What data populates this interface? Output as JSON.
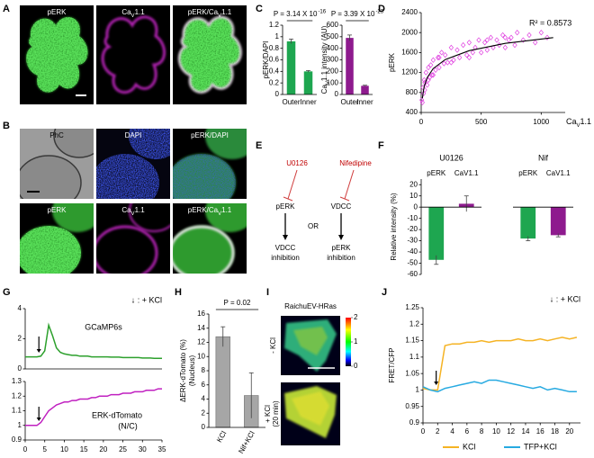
{
  "panel_labels": [
    "A",
    "B",
    "C",
    "D",
    "E",
    "F",
    "G",
    "H",
    "I",
    "J"
  ],
  "images": {
    "A": [
      "pERK",
      "CaV1.1",
      "pERK/CaV1.1"
    ],
    "B": [
      "PhC",
      "DAPI",
      "pERK/DAPI",
      "pERK",
      "CaV1.1",
      "pERK/CaV1.1"
    ],
    "I": {
      "title": "RaichuEV-HRas",
      "rows": [
        "- KCl",
        "+ KCl"
      ],
      "row_note": "(20 min)",
      "colorbar_lim": [
        0,
        2
      ],
      "colorbar_ticks": [
        0,
        1,
        2
      ]
    }
  },
  "diagram": {
    "inhibitors": [
      "U0126",
      "Nifedipine"
    ],
    "nodes": [
      "pERK",
      "VDCC"
    ],
    "separator": "OR",
    "outcomes": [
      [
        "VDCC",
        "inhibition"
      ],
      [
        "pERK",
        "inhibition"
      ]
    ]
  },
  "chart_data": [
    {
      "type": "bar",
      "ylabel": "pERK/DAPI",
      "categories": [
        "Outer",
        "Inner"
      ],
      "values": [
        0.92,
        0.4
      ],
      "errors": [
        0.04,
        0.015
      ],
      "color": "#1ea650",
      "ylim": [
        0,
        1.2
      ],
      "yticks": [
        0,
        0.2,
        0.4,
        0.6,
        0.8,
        1,
        1.2
      ],
      "annotation": {
        "text": "P = 3.14 X 10",
        "exponent": "-16"
      }
    },
    {
      "type": "bar",
      "ylabel": "CaV1.1 intensity (AU)",
      "categories": [
        "Outer",
        "Inner"
      ],
      "values": [
        490,
        75
      ],
      "errors": [
        25,
        5
      ],
      "color": "#8e1a8e",
      "ylim": [
        0,
        600
      ],
      "yticks": [
        0,
        100,
        200,
        300,
        400,
        500,
        600
      ],
      "annotation": {
        "text": "P = 3.39 X 10",
        "exponent": "-23"
      }
    },
    {
      "type": "scatter",
      "ylabel": "pERK",
      "xlabel": "CaV1.1",
      "annotation": "R² = 0.8573",
      "color": "#e040e0",
      "x": [
        5,
        10,
        15,
        20,
        25,
        30,
        40,
        50,
        60,
        70,
        80,
        90,
        100,
        120,
        140,
        150,
        170,
        190,
        200,
        220,
        250,
        270,
        300,
        320,
        350,
        380,
        400,
        430,
        450,
        480,
        500,
        530,
        550,
        580,
        600,
        630,
        650,
        680,
        700,
        730,
        750,
        780,
        800,
        850,
        900,
        950,
        1000,
        1050,
        30,
        60,
        100,
        150,
        250,
        400,
        550,
        700
      ],
      "y": [
        650,
        600,
        900,
        780,
        1050,
        850,
        1200,
        950,
        1300,
        1100,
        1350,
        1150,
        1450,
        1250,
        1500,
        1300,
        1600,
        1380,
        1550,
        1400,
        1700,
        1450,
        1650,
        1500,
        1750,
        1550,
        1800,
        1600,
        1700,
        1850,
        1600,
        1800,
        1650,
        1900,
        1700,
        1850,
        1750,
        1950,
        1700,
        1850,
        1900,
        1750,
        2000,
        1850,
        1950,
        1800,
        2000,
        1900,
        1000,
        1050,
        1150,
        1500,
        1400,
        1500,
        1850,
        1900
      ],
      "trendline": {
        "x": [
          10,
          25,
          50,
          100,
          200,
          400,
          700,
          1100
        ],
        "y": [
          684,
          921,
          1100,
          1279,
          1459,
          1638,
          1783,
          1900
        ]
      },
      "xlim": [
        0,
        1200
      ],
      "xticks": [
        0,
        500,
        1000
      ],
      "ylim": [
        400,
        2400
      ],
      "yticks": [
        400,
        800,
        1200,
        1600,
        2000,
        2400
      ]
    },
    {
      "type": "bar",
      "title": "U0126",
      "ylabel": "Relative intensity (%)",
      "categories": [
        "pERK",
        "CaV1.1"
      ],
      "values": [
        -47,
        3
      ],
      "errors": [
        4,
        7
      ],
      "colors": [
        "#1ea650",
        "#8e1a8e"
      ],
      "ylim": [
        -60,
        25
      ],
      "yticks": [
        -60,
        -50,
        -40,
        -30,
        -20,
        -10,
        0,
        10,
        20
      ]
    },
    {
      "type": "bar",
      "title": "Nif",
      "categories": [
        "pERK",
        "CaV1.1"
      ],
      "values": [
        -28,
        -25
      ],
      "errors": [
        2,
        1.5
      ],
      "colors": [
        "#1ea650",
        "#8e1a8e"
      ],
      "ylim": [
        -60,
        25
      ]
    },
    {
      "type": "line",
      "annotation": "↓ : + KCl",
      "stimulus_x": 3.5,
      "x": [
        0,
        1,
        2,
        3,
        4,
        5,
        6,
        7,
        8,
        9,
        10,
        11,
        12,
        13,
        14,
        15,
        16,
        17,
        18,
        19,
        20,
        21,
        22,
        23,
        24,
        25,
        26,
        27,
        28,
        29,
        30,
        31,
        32,
        33,
        34,
        35
      ],
      "series": [
        {
          "name": "GCaMP6s",
          "color": "#2ca02c",
          "values": [
            0.8,
            0.8,
            0.8,
            0.8,
            0.85,
            1.2,
            2.9,
            2.2,
            1.4,
            1.1,
            1.0,
            0.95,
            0.9,
            0.9,
            0.85,
            0.85,
            0.85,
            0.8,
            0.8,
            0.8,
            0.8,
            0.8,
            0.78,
            0.78,
            0.78,
            0.75,
            0.75,
            0.75,
            0.75,
            0.75,
            0.72,
            0.72,
            0.72,
            0.7,
            0.7,
            0.7
          ]
        }
      ],
      "xlim": [
        0,
        35
      ],
      "ylim": [
        0,
        4
      ],
      "yticks": [
        0,
        2,
        4
      ]
    },
    {
      "type": "line",
      "stimulus_x": 3.5,
      "series_note": "(N/C)",
      "x": [
        0,
        1,
        2,
        3,
        4,
        5,
        6,
        7,
        8,
        9,
        10,
        11,
        12,
        13,
        14,
        15,
        16,
        17,
        18,
        19,
        20,
        21,
        22,
        23,
        24,
        25,
        26,
        27,
        28,
        29,
        30,
        31,
        32,
        33,
        34,
        35
      ],
      "series": [
        {
          "name": "ERK-dTomato",
          "color": "#c020c0",
          "values": [
            1.0,
            1.0,
            1.0,
            1.0,
            1.02,
            1.06,
            1.1,
            1.12,
            1.14,
            1.15,
            1.16,
            1.16,
            1.17,
            1.17,
            1.18,
            1.18,
            1.18,
            1.19,
            1.19,
            1.2,
            1.2,
            1.2,
            1.21,
            1.21,
            1.21,
            1.22,
            1.22,
            1.22,
            1.23,
            1.23,
            1.23,
            1.24,
            1.24,
            1.24,
            1.25,
            1.25
          ]
        }
      ],
      "xlim": [
        0,
        35
      ],
      "xticks": [
        0,
        5,
        10,
        15,
        20,
        25,
        30,
        35
      ],
      "ylim": [
        0.9,
        1.3
      ],
      "yticks": [
        0.9,
        1,
        1.1,
        1.2,
        1.3
      ]
    },
    {
      "type": "bar",
      "ylabel": "ΔERK-dTomato (%)",
      "ylabel2": "(Nucleus)",
      "categories": [
        "KCl",
        "Nif+KCl"
      ],
      "values": [
        12.8,
        4.5
      ],
      "errors": [
        1.4,
        3.2
      ],
      "color": "#a6a6a6",
      "ylim": [
        0,
        16
      ],
      "yticks": [
        0,
        2,
        4,
        6,
        8,
        10,
        12,
        14,
        16
      ],
      "annotation": {
        "text": "P = 0.02"
      }
    },
    {
      "type": "line",
      "ylabel": "FRET/CFP",
      "annotation": "↓ : + KCl",
      "stimulus_x": 1.8,
      "legend": "bottom",
      "x": [
        0,
        1,
        2,
        3,
        4,
        5,
        6,
        7,
        8,
        9,
        10,
        11,
        12,
        13,
        14,
        15,
        16,
        17,
        18,
        19,
        20,
        21
      ],
      "series": [
        {
          "name": "KCl",
          "color": "#f5b324",
          "values": [
            1.005,
            1.0,
            1.0,
            1.135,
            1.14,
            1.14,
            1.145,
            1.145,
            1.15,
            1.145,
            1.15,
            1.15,
            1.15,
            1.155,
            1.15,
            1.15,
            1.155,
            1.15,
            1.155,
            1.16,
            1.155,
            1.16
          ]
        },
        {
          "name": "TFP+KCl",
          "color": "#27aae1",
          "values": [
            1.01,
            1.0,
            0.995,
            1.005,
            1.01,
            1.015,
            1.02,
            1.025,
            1.02,
            1.03,
            1.03,
            1.025,
            1.02,
            1.015,
            1.01,
            1.005,
            1.01,
            1.0,
            1.005,
            1.0,
            0.995,
            0.995
          ]
        }
      ],
      "xlim": [
        0,
        21.5
      ],
      "xticks": [
        0,
        2,
        4,
        6,
        8,
        10,
        12,
        14,
        16,
        18,
        20
      ],
      "ylim": [
        0.9,
        1.25
      ],
      "yticks": [
        0.9,
        0.95,
        1,
        1.05,
        1.1,
        1.15,
        1.2,
        1.25
      ]
    }
  ]
}
